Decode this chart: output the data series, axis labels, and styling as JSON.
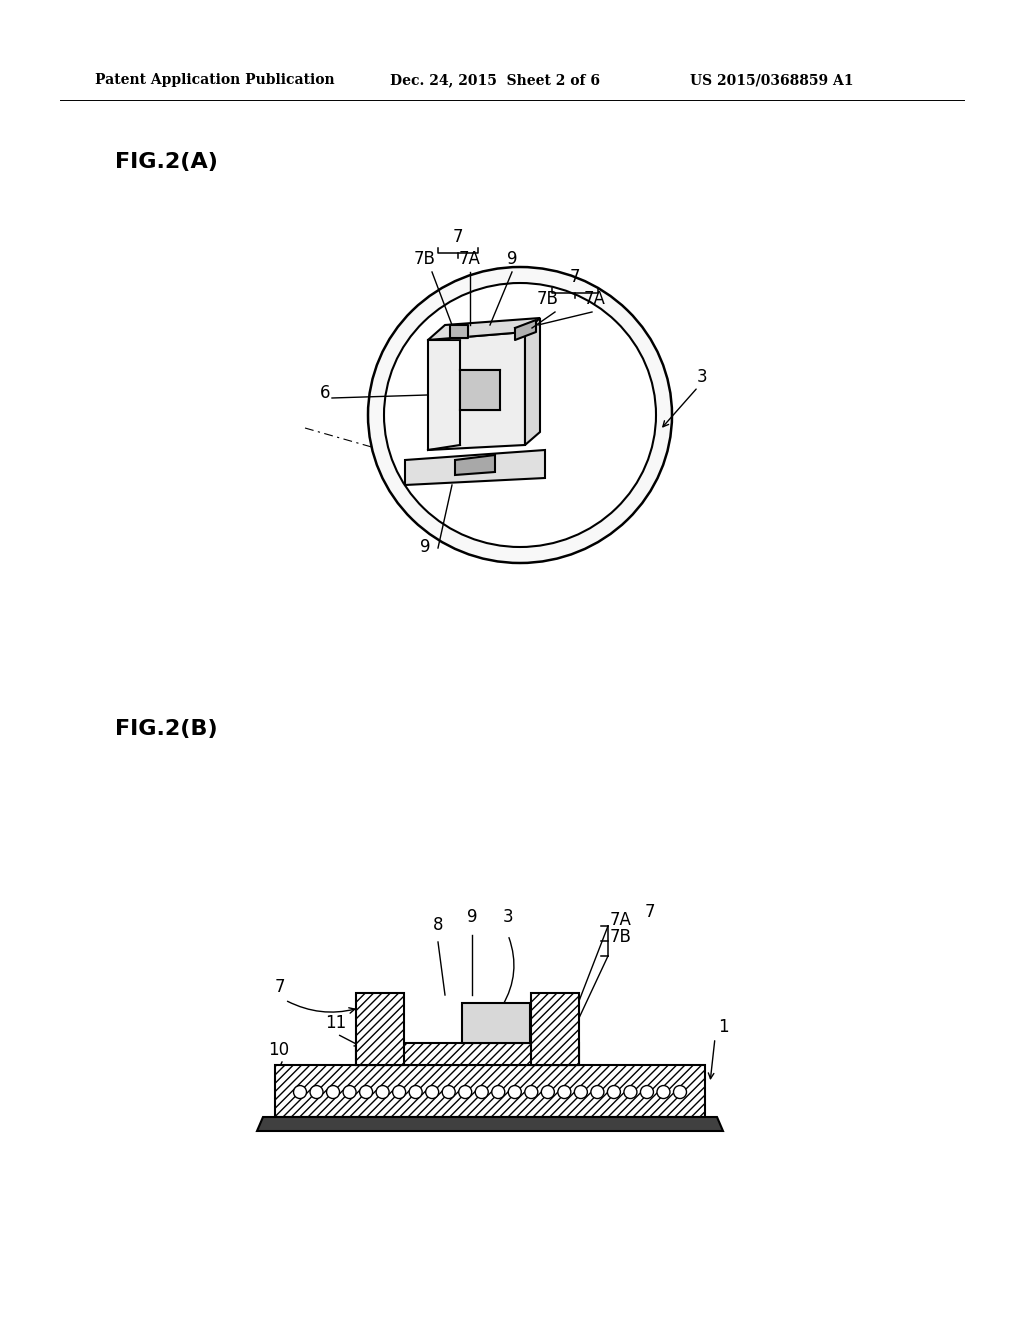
{
  "bg_color": "#ffffff",
  "header_left": "Patent Application Publication",
  "header_mid": "Dec. 24, 2015  Sheet 2 of 6",
  "header_right": "US 2015/0368859 A1",
  "fig2a_label": "FIG.2(A)",
  "fig2b_label": "FIG.2(B)",
  "line_color": "#000000",
  "text_color": "#000000"
}
